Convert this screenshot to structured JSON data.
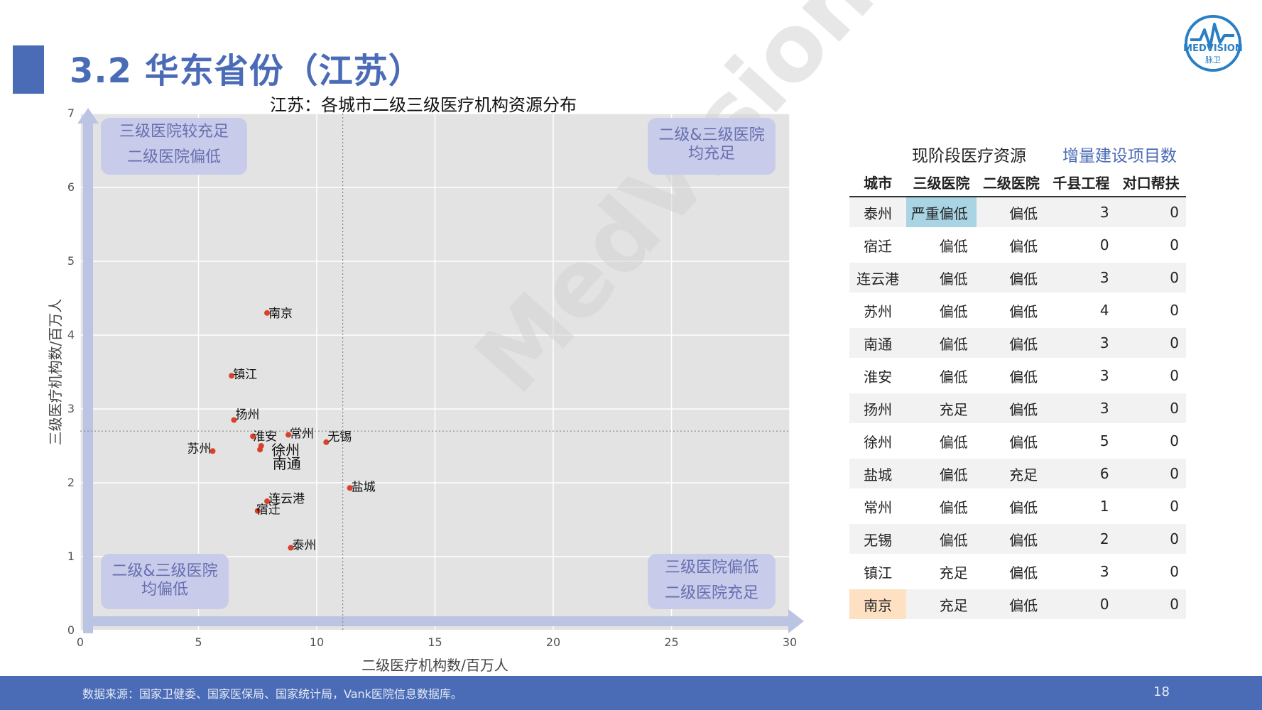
{
  "header": {
    "title": "3.2 华东省份（江苏）"
  },
  "logo": {
    "brand": "MEDVISION",
    "sub": "脉卫"
  },
  "watermark": "MedVision",
  "chart_data": {
    "type": "scatter",
    "title": "江苏：各城市二级三级医疗机构资源分布",
    "xlabel": "二级医疗机构数/百万人",
    "ylabel": "三级医疗机构数/百万人",
    "xlim": [
      0,
      30
    ],
    "ylim": [
      0,
      7
    ],
    "xticks": [
      0,
      5,
      10,
      15,
      20,
      25,
      30
    ],
    "yticks": [
      0,
      1,
      2,
      3,
      4,
      5,
      6,
      7
    ],
    "grid": true,
    "reference_lines": {
      "x": 11.1,
      "y": 2.7
    },
    "points": [
      {
        "label": "南京",
        "x": 7.9,
        "y": 4.3
      },
      {
        "label": "镇江",
        "x": 6.4,
        "y": 3.45
      },
      {
        "label": "扬州",
        "x": 6.5,
        "y": 2.85
      },
      {
        "label": "淮安",
        "x": 7.3,
        "y": 2.63
      },
      {
        "label": "常州",
        "x": 8.8,
        "y": 2.65
      },
      {
        "label": "无锡",
        "x": 10.4,
        "y": 2.55
      },
      {
        "label": "苏州",
        "x": 5.6,
        "y": 2.43
      },
      {
        "label": "徐州",
        "x": 7.6,
        "y": 2.45
      },
      {
        "label": "南通",
        "x": 7.65,
        "y": 2.5
      },
      {
        "label": "盐城",
        "x": 11.4,
        "y": 1.93
      },
      {
        "label": "连云港",
        "x": 7.9,
        "y": 1.75
      },
      {
        "label": "宿迁",
        "x": 7.5,
        "y": 1.62
      },
      {
        "label": "泰州",
        "x": 8.9,
        "y": 1.12
      }
    ],
    "quadrants": {
      "top_left": [
        "三级医院较充足",
        "二级医院偏低"
      ],
      "top_right": [
        "二级&三级医院",
        "均充足"
      ],
      "bottom_left": [
        "二级&三级医院",
        "均偏低"
      ],
      "bottom_right": [
        "三级医院偏低",
        "二级医院充足"
      ]
    }
  },
  "table": {
    "group1": "现阶段医疗资源",
    "group2": "增量建设项目数",
    "headers": [
      "城市",
      "三级医院",
      "二级医院",
      "千县工程",
      "对口帮扶"
    ],
    "rows": [
      [
        "泰州",
        "严重偏低",
        "偏低",
        "3",
        "0"
      ],
      [
        "宿迁",
        "偏低",
        "偏低",
        "0",
        "0"
      ],
      [
        "连云港",
        "偏低",
        "偏低",
        "3",
        "0"
      ],
      [
        "苏州",
        "偏低",
        "偏低",
        "4",
        "0"
      ],
      [
        "南通",
        "偏低",
        "偏低",
        "3",
        "0"
      ],
      [
        "淮安",
        "偏低",
        "偏低",
        "3",
        "0"
      ],
      [
        "扬州",
        "充足",
        "偏低",
        "3",
        "0"
      ],
      [
        "徐州",
        "偏低",
        "偏低",
        "5",
        "0"
      ],
      [
        "盐城",
        "偏低",
        "充足",
        "6",
        "0"
      ],
      [
        "常州",
        "偏低",
        "偏低",
        "1",
        "0"
      ],
      [
        "无锡",
        "偏低",
        "偏低",
        "2",
        "0"
      ],
      [
        "镇江",
        "充足",
        "偏低",
        "3",
        "0"
      ],
      [
        "南京",
        "充足",
        "偏低",
        "0",
        "0"
      ]
    ]
  },
  "footer": {
    "source": "数据来源：国家卫健委、国家医保局、国家统计局，Vank医院信息数据库。",
    "page": "18"
  }
}
